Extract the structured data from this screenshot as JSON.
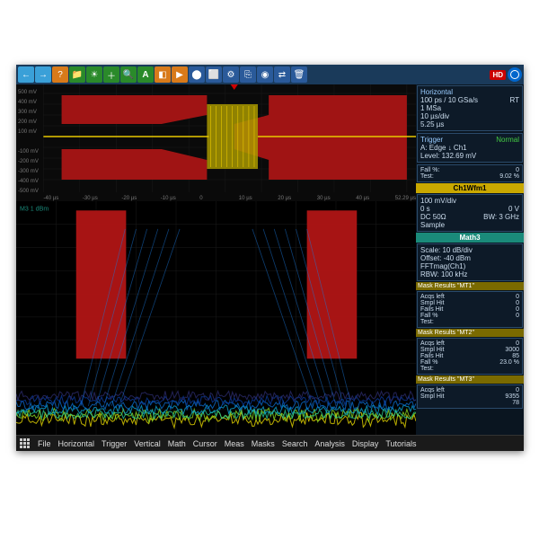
{
  "toolbar": {
    "icons": [
      "←",
      "→",
      "?",
      "📁",
      "🔅",
      "+",
      "🔍",
      "A",
      "📊",
      "▶",
      "⏸",
      "⚪",
      "⬜",
      "🔧",
      "📋",
      "📷",
      "🔗",
      "🗑"
    ],
    "hd_label": "HD"
  },
  "sidebar": {
    "horizontal": {
      "title": "Horizontal",
      "l1": "100 ps / 10 GSa/s",
      "l2": "1 MSa",
      "l3": "10 µs/div",
      "l4": "5.25 µs",
      "rt": "RT"
    },
    "trigger": {
      "title": "Trigger",
      "mode": "Normal",
      "l1": "A:  Edge ↓ Ch1",
      "l2": "Level: 132.69 mV"
    },
    "fall": {
      "l1": "Fall %:",
      "v1": "0",
      "l2": "Test:",
      "v2": "9.02  %"
    },
    "ch1": {
      "header": "Ch1Wfm1",
      "l1": "100 mV/div",
      "l2a": "0 s",
      "l2b": "0 V",
      "l3a": "DC 50Ω",
      "l3b": "BW: 3 GHz",
      "l4": "Sample"
    },
    "math": {
      "header": "Math3",
      "l1": "Scale: 10 dB/div",
      "l2": "Offset: -40 dBm",
      "l3": "FFTmag(Ch1)",
      "l4": "RBW:    100 kHz"
    },
    "mt1": {
      "h": "Mask Results \"MT1\"",
      "r": [
        [
          "Acqs left",
          "0"
        ],
        [
          "Smpl Hit",
          "0"
        ],
        [
          "Fails Hit",
          "0"
        ],
        [
          "Fall %",
          "0"
        ],
        [
          "Test:",
          ""
        ]
      ]
    },
    "mt2": {
      "h": "Mask Results \"MT2\"",
      "r": [
        [
          "Acqs left",
          "0"
        ],
        [
          "Smpl Hit",
          "3000"
        ],
        [
          "Fails Hit",
          "85"
        ],
        [
          "Fall %",
          "23.0  %"
        ],
        [
          "Test:",
          ""
        ]
      ]
    },
    "mt3": {
      "h": "Mask Results \"MT3\"",
      "r": [
        [
          "Acqs left",
          "0"
        ],
        [
          "Smpl Hit",
          "9355"
        ],
        [
          "",
          "78"
        ]
      ]
    }
  },
  "top_plot": {
    "ylabels": [
      "500 mV",
      "400 mV",
      "300 mV",
      "200 mV",
      "100 mV",
      "",
      "-100 mV",
      "-200 mV",
      "-300 mV",
      "-400 mV",
      "-500 mV"
    ],
    "xlabels": [
      "-40 µs",
      "-30 µs",
      "-20 µs",
      "-10 µs",
      "0",
      "10 µs",
      "20 µs",
      "30 µs",
      "40 µs",
      "52.29 µs"
    ],
    "mask_fill": "#b01515",
    "yellow_fill": "#b8a800",
    "trace_color": "#e8c800"
  },
  "menubar": [
    "File",
    "Horizontal",
    "Trigger",
    "Vertical",
    "Math",
    "Cursor",
    "Meas",
    "Masks",
    "Search",
    "Analysis",
    "Display",
    "Tutorials"
  ]
}
